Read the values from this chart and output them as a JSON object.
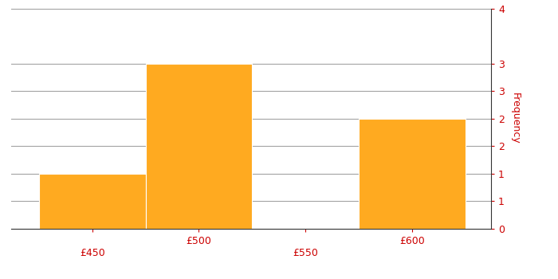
{
  "bin_edges": [
    425,
    475,
    525,
    575,
    625
  ],
  "frequencies": [
    1,
    3,
    0,
    2
  ],
  "bar_color": "#FFAA20",
  "bar_edgecolor": "#FFFFFF",
  "ylabel": "Frequency",
  "xlim": [
    412,
    637
  ],
  "ylim": [
    0,
    4
  ],
  "ytick_vals": [
    0,
    0.5,
    1,
    1.5,
    2,
    2.5,
    3,
    4
  ],
  "ytick_labels": [
    "0",
    "1",
    "1",
    "2",
    "2",
    "3",
    "3",
    "4"
  ],
  "xtick_positions": [
    450,
    500,
    550,
    600
  ],
  "xtick_labels": [
    "£450",
    "£500",
    "£550",
    "£600"
  ],
  "background_color": "#FFFFFF",
  "grid_color": "#999999",
  "axis_color": "#333333",
  "tick_color": "#CC0000",
  "ylabel_color": "#CC0000",
  "ylabel_fontsize": 9,
  "tick_fontsize": 9
}
